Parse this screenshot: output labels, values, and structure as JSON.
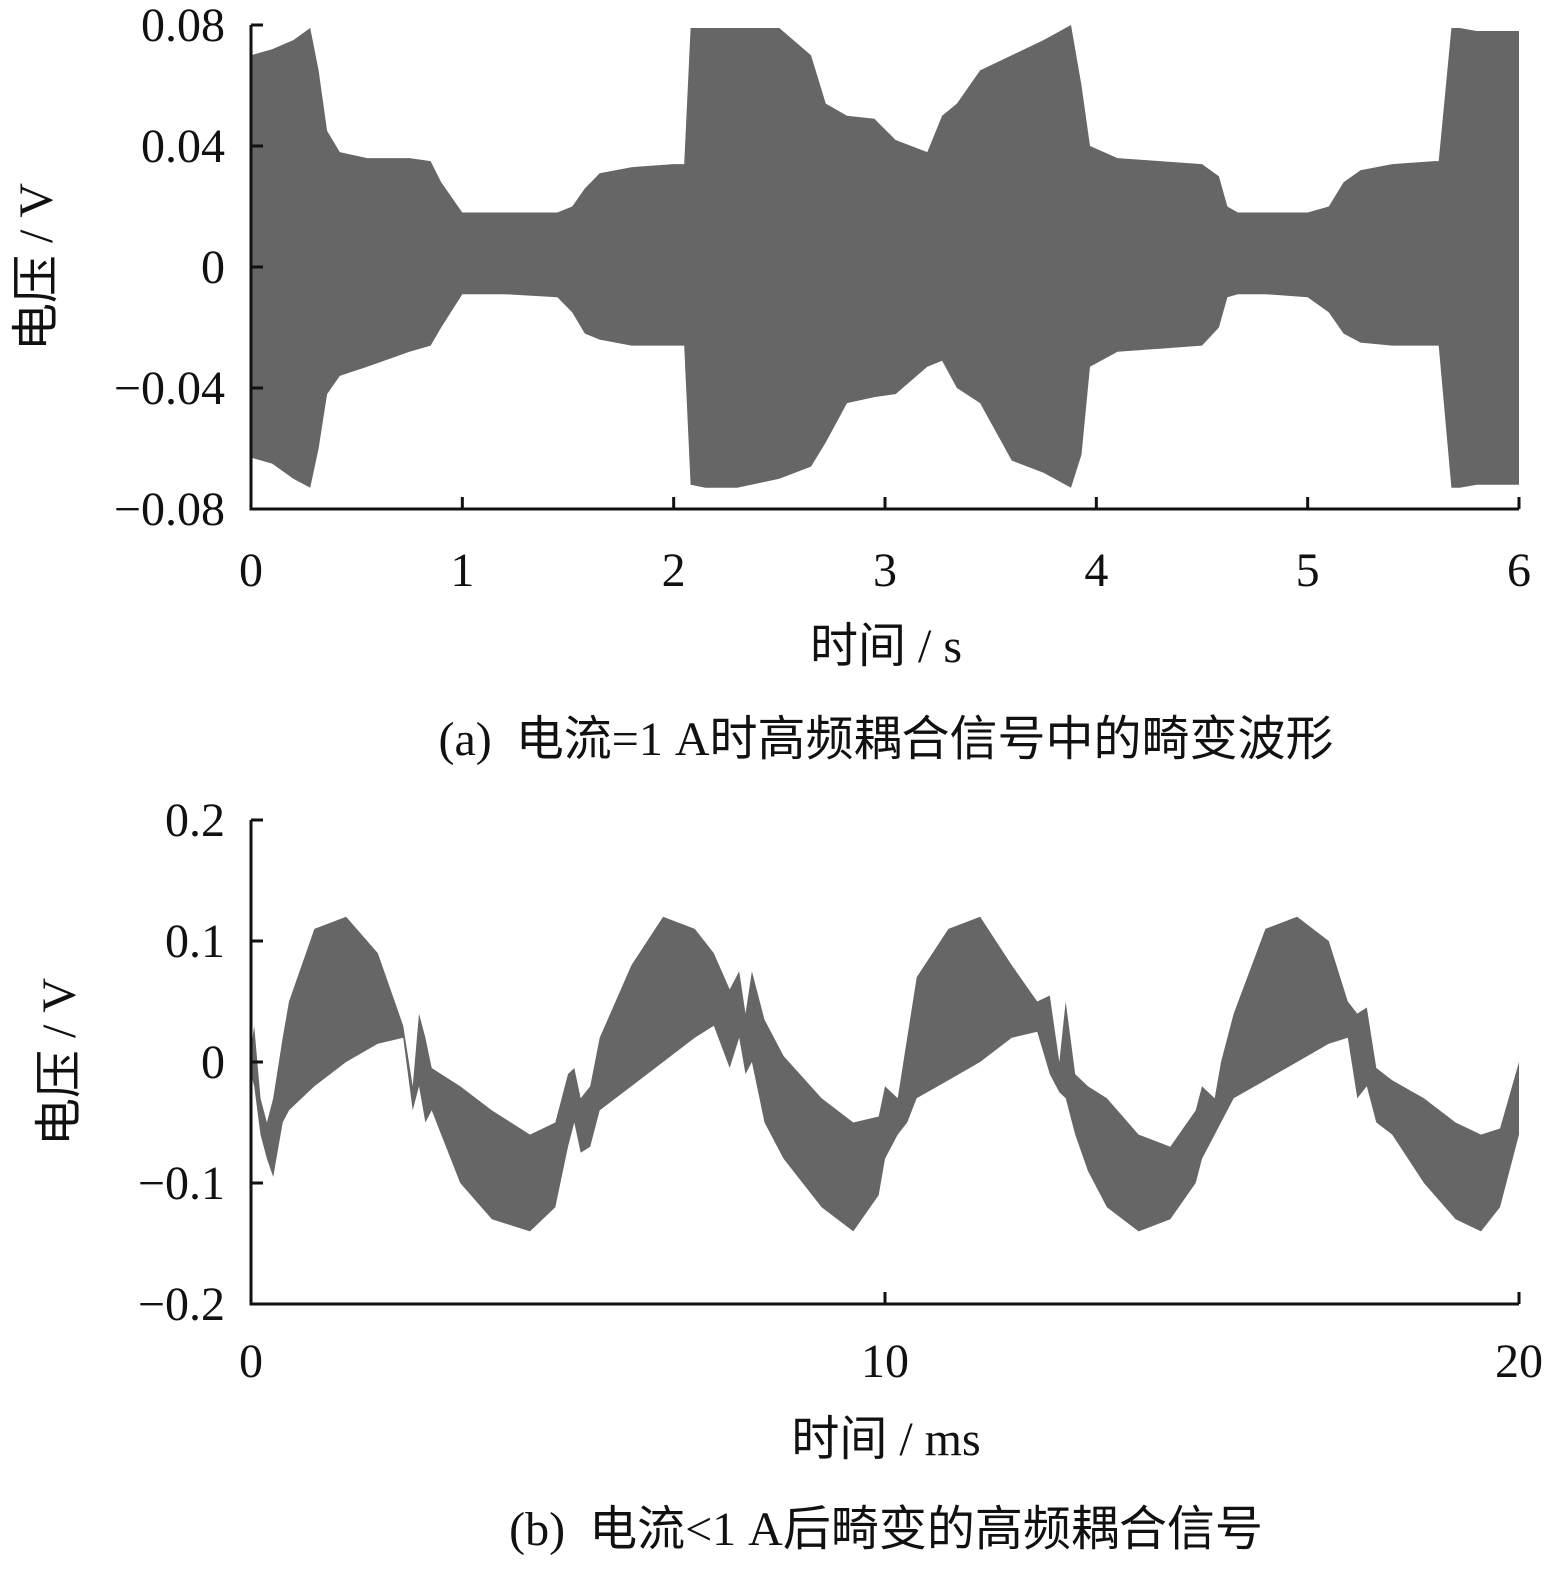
{
  "chart_data": [
    {
      "type": "area",
      "caption": "(a)  电流=1 A时高频耦合信号中的畸变波形",
      "xlabel": "时间 / s",
      "ylabel": "电压 / V",
      "xlim": [
        0,
        6
      ],
      "ylim": [
        -0.08,
        0.08
      ],
      "xticks": [
        0,
        1,
        2,
        3,
        4,
        5,
        6
      ],
      "xtick_labels": [
        "0",
        "1",
        "2",
        "3",
        "4",
        "5",
        "6"
      ],
      "yticks": [
        0.08,
        0.04,
        0,
        -0.04,
        -0.08
      ],
      "ytick_labels": [
        "0.08",
        "0.04",
        "0",
        "−0.04",
        "−0.08"
      ],
      "fill_color": "#666666",
      "series": [
        {
          "x": [
            0,
            0.1,
            0.2,
            0.28,
            0.32,
            0.36,
            0.42,
            0.55,
            0.75,
            0.85,
            0.9,
            1.0,
            1.2,
            1.45,
            1.52,
            1.58,
            1.65,
            1.8,
            2.0,
            2.05,
            2.08,
            2.15,
            2.3,
            2.5,
            2.65,
            2.72,
            2.82,
            2.95,
            3.05,
            3.2,
            3.27,
            3.34,
            3.45,
            3.6,
            3.75,
            3.88,
            3.93,
            3.97,
            4.1,
            4.3,
            4.5,
            4.58,
            4.62,
            4.67,
            4.7,
            4.8,
            5.0,
            5.1,
            5.17,
            5.25,
            5.4,
            5.6,
            5.62,
            5.68,
            5.72,
            5.8,
            6.0
          ],
          "upper": [
            0.07,
            0.072,
            0.075,
            0.079,
            0.065,
            0.045,
            0.038,
            0.036,
            0.036,
            0.035,
            0.028,
            0.018,
            0.018,
            0.018,
            0.02,
            0.026,
            0.031,
            0.033,
            0.034,
            0.034,
            0.079,
            0.079,
            0.079,
            0.079,
            0.07,
            0.054,
            0.05,
            0.049,
            0.042,
            0.038,
            0.05,
            0.054,
            0.065,
            0.07,
            0.075,
            0.08,
            0.06,
            0.04,
            0.036,
            0.035,
            0.034,
            0.03,
            0.02,
            0.018,
            0.018,
            0.018,
            0.018,
            0.02,
            0.028,
            0.032,
            0.034,
            0.035,
            0.035,
            0.079,
            0.079,
            0.078,
            0.078
          ],
          "lower": [
            -0.063,
            -0.065,
            -0.07,
            -0.073,
            -0.06,
            -0.042,
            -0.036,
            -0.033,
            -0.028,
            -0.026,
            -0.02,
            -0.009,
            -0.009,
            -0.01,
            -0.015,
            -0.022,
            -0.024,
            -0.026,
            -0.026,
            -0.026,
            -0.072,
            -0.073,
            -0.073,
            -0.07,
            -0.066,
            -0.058,
            -0.045,
            -0.043,
            -0.042,
            -0.033,
            -0.031,
            -0.04,
            -0.045,
            -0.064,
            -0.068,
            -0.073,
            -0.062,
            -0.033,
            -0.028,
            -0.027,
            -0.026,
            -0.02,
            -0.01,
            -0.009,
            -0.009,
            -0.009,
            -0.01,
            -0.015,
            -0.022,
            -0.025,
            -0.026,
            -0.026,
            -0.026,
            -0.073,
            -0.073,
            -0.072,
            -0.072
          ]
        }
      ]
    },
    {
      "type": "area",
      "caption": "(b)  电流<1 A后畸变的高频耦合信号",
      "xlabel": "时间 / ms",
      "ylabel": "电压 / V",
      "xlim": [
        0,
        20
      ],
      "ylim": [
        -0.2,
        0.2
      ],
      "xticks": [
        0,
        10,
        20
      ],
      "xtick_labels": [
        "0",
        "10",
        "20"
      ],
      "yticks": [
        0.2,
        0.1,
        0,
        -0.1,
        -0.2
      ],
      "ytick_labels": [
        "0.2",
        "0.1",
        "0",
        "−0.1",
        "−0.2"
      ],
      "fill_color": "#666666",
      "series": [
        {
          "x": [
            0,
            0.05,
            0.15,
            0.25,
            0.35,
            0.5,
            0.6,
            0.8,
            1.0,
            1.5,
            2.0,
            2.4,
            2.55,
            2.65,
            2.75,
            2.85,
            3.0,
            3.3,
            3.8,
            4.4,
            4.8,
            5.0,
            5.1,
            5.2,
            5.35,
            5.5,
            6.0,
            6.5,
            7.0,
            7.3,
            7.55,
            7.7,
            7.8,
            7.9,
            8.1,
            8.4,
            9.0,
            9.5,
            9.9,
            10.0,
            10.2,
            10.35,
            10.5,
            11.0,
            11.5,
            12.0,
            12.4,
            12.6,
            12.75,
            12.85,
            13.0,
            13.2,
            13.5,
            14.0,
            14.5,
            14.9,
            15.0,
            15.2,
            15.3,
            15.5,
            16.0,
            16.5,
            17.0,
            17.3,
            17.45,
            17.6,
            17.75,
            18.0,
            18.5,
            19.0,
            19.4,
            19.7,
            20.0
          ],
          "upper": [
            0.01,
            0.03,
            -0.03,
            -0.05,
            -0.03,
            0.02,
            0.05,
            0.08,
            0.11,
            0.12,
            0.09,
            0.03,
            -0.02,
            0.04,
            0.02,
            -0.005,
            -0.01,
            -0.02,
            -0.04,
            -0.06,
            -0.05,
            -0.01,
            -0.005,
            -0.03,
            -0.02,
            0.02,
            0.08,
            0.12,
            0.11,
            0.09,
            0.06,
            0.075,
            0.04,
            0.075,
            0.035,
            0.005,
            -0.03,
            -0.05,
            -0.045,
            -0.02,
            -0.03,
            0.02,
            0.07,
            0.11,
            0.12,
            0.08,
            0.05,
            0.055,
            0.0,
            0.05,
            -0.01,
            -0.02,
            -0.03,
            -0.06,
            -0.07,
            -0.04,
            -0.02,
            -0.03,
            0.0,
            0.04,
            0.11,
            0.12,
            0.1,
            0.05,
            0.04,
            0.045,
            -0.005,
            -0.015,
            -0.03,
            -0.05,
            -0.06,
            -0.055,
            0.0
          ],
          "lower": [
            -0.01,
            -0.02,
            -0.06,
            -0.08,
            -0.095,
            -0.05,
            -0.04,
            -0.03,
            -0.02,
            0.0,
            0.015,
            0.02,
            -0.04,
            -0.02,
            -0.05,
            -0.04,
            -0.06,
            -0.1,
            -0.13,
            -0.14,
            -0.12,
            -0.07,
            -0.05,
            -0.075,
            -0.07,
            -0.04,
            -0.02,
            0.0,
            0.02,
            0.03,
            -0.005,
            0.02,
            -0.01,
            0.0,
            -0.05,
            -0.08,
            -0.12,
            -0.14,
            -0.11,
            -0.08,
            -0.06,
            -0.05,
            -0.03,
            -0.015,
            0.0,
            0.02,
            0.025,
            -0.01,
            -0.025,
            -0.03,
            -0.06,
            -0.09,
            -0.12,
            -0.14,
            -0.13,
            -0.1,
            -0.08,
            -0.06,
            -0.05,
            -0.03,
            -0.015,
            0.0,
            0.015,
            0.02,
            -0.03,
            -0.02,
            -0.05,
            -0.06,
            -0.1,
            -0.13,
            -0.14,
            -0.12,
            -0.06
          ]
        }
      ]
    }
  ]
}
